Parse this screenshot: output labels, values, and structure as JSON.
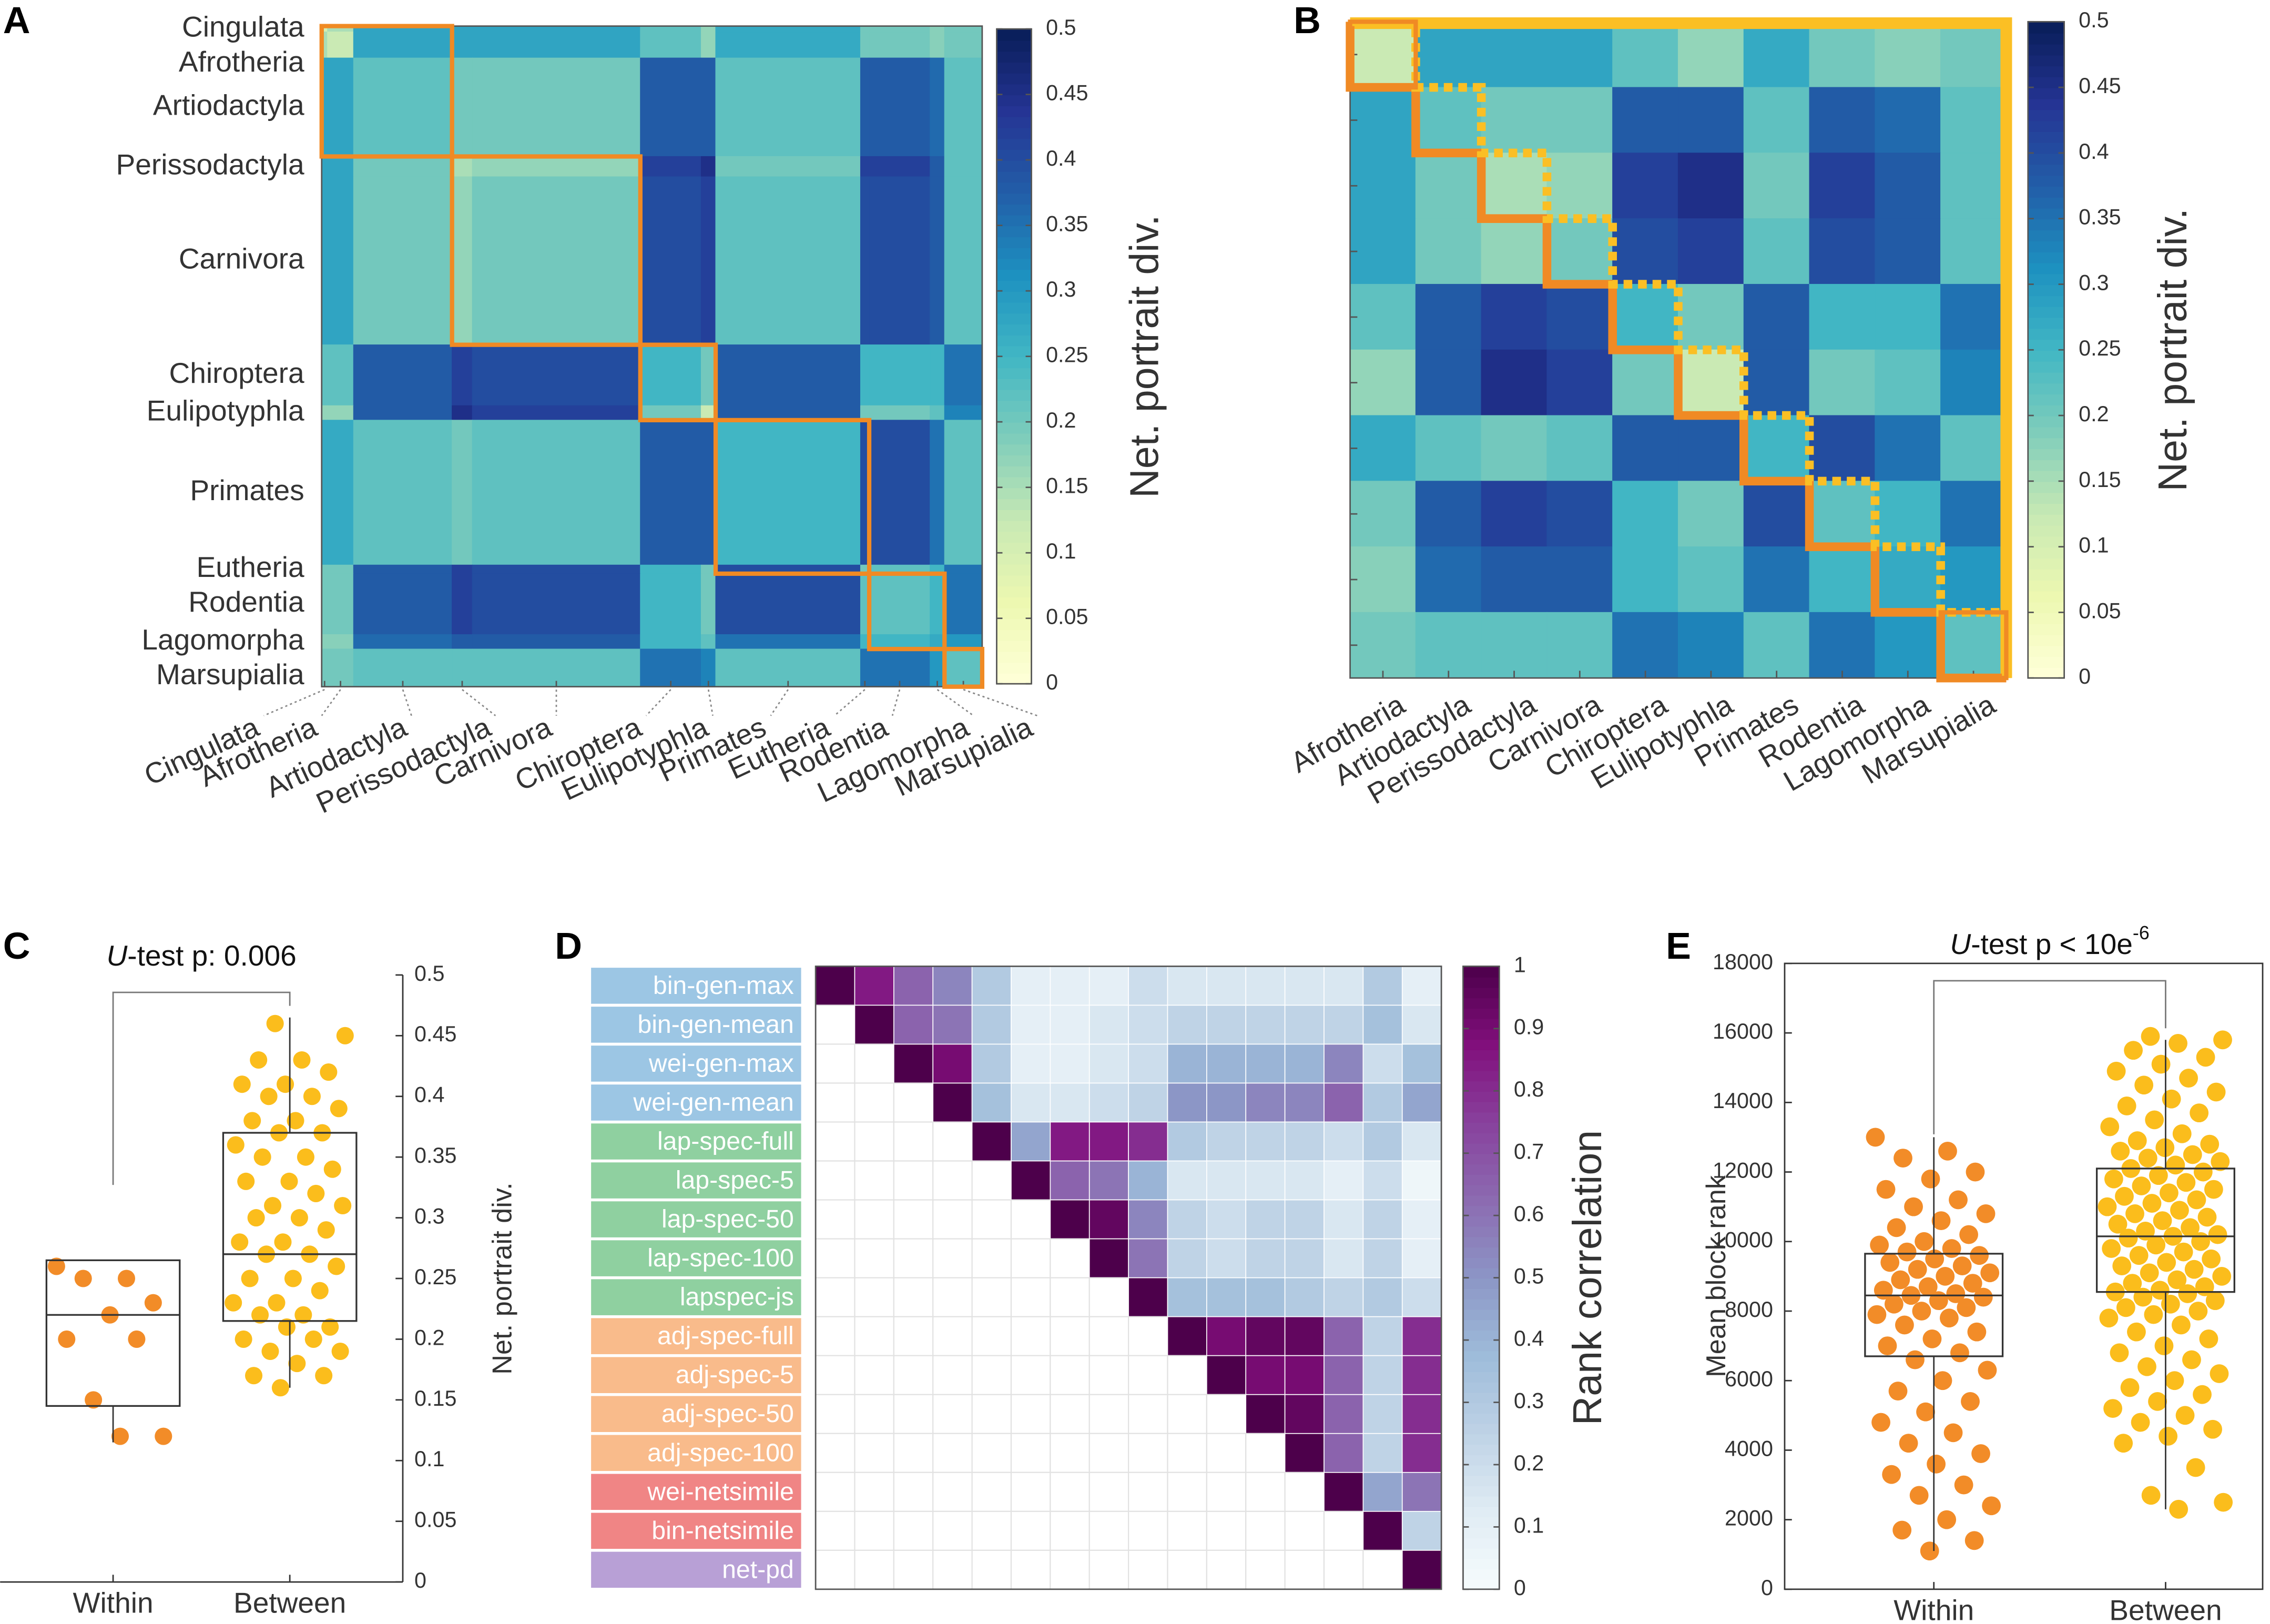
{
  "chart_data": [
    {
      "type": "heatmap",
      "panel": "A",
      "categories": [
        "Cingulata",
        "Afrotheria",
        "Artiodactyla",
        "Perissodactyla",
        "Carnivora",
        "Chiroptera",
        "Eulipotyphla",
        "Primates",
        "Eutheria",
        "Rodentia",
        "Lagomorpha",
        "Marsupialia"
      ],
      "sizes": [
        2,
        9,
        34,
        7,
        58,
        21,
        5,
        50,
        3,
        21,
        5,
        13
      ],
      "values": [
        [
          0.1,
          0.15,
          0.28,
          0.28,
          0.28,
          0.22,
          0.17,
          0.27,
          0.2,
          0.2,
          0.18,
          0.2
        ],
        [
          0.15,
          0.12,
          0.28,
          0.28,
          0.28,
          0.22,
          0.17,
          0.27,
          0.2,
          0.2,
          0.18,
          0.2
        ],
        [
          0.28,
          0.28,
          0.22,
          0.2,
          0.2,
          0.38,
          0.38,
          0.22,
          0.38,
          0.38,
          0.36,
          0.22
        ],
        [
          0.28,
          0.28,
          0.2,
          0.15,
          0.17,
          0.42,
          0.45,
          0.2,
          0.42,
          0.42,
          0.38,
          0.22
        ],
        [
          0.28,
          0.28,
          0.2,
          0.17,
          0.2,
          0.4,
          0.42,
          0.22,
          0.4,
          0.4,
          0.38,
          0.22
        ],
        [
          0.22,
          0.22,
          0.38,
          0.42,
          0.4,
          0.25,
          0.2,
          0.38,
          0.25,
          0.25,
          0.25,
          0.35
        ],
        [
          0.17,
          0.17,
          0.38,
          0.45,
          0.42,
          0.2,
          0.12,
          0.38,
          0.2,
          0.2,
          0.22,
          0.33
        ],
        [
          0.27,
          0.27,
          0.22,
          0.2,
          0.22,
          0.38,
          0.38,
          0.25,
          0.4,
          0.4,
          0.35,
          0.22
        ],
        [
          0.2,
          0.2,
          0.38,
          0.42,
          0.4,
          0.25,
          0.2,
          0.4,
          0.2,
          0.22,
          0.25,
          0.35
        ],
        [
          0.2,
          0.2,
          0.38,
          0.42,
          0.4,
          0.25,
          0.2,
          0.4,
          0.22,
          0.22,
          0.25,
          0.35
        ],
        [
          0.18,
          0.18,
          0.36,
          0.38,
          0.38,
          0.25,
          0.22,
          0.35,
          0.25,
          0.25,
          0.27,
          0.3
        ],
        [
          0.2,
          0.2,
          0.22,
          0.22,
          0.22,
          0.35,
          0.33,
          0.22,
          0.35,
          0.35,
          0.3,
          0.22
        ]
      ],
      "zlim": [
        0,
        0.5
      ],
      "zticks": [
        0,
        0.05,
        0.1,
        0.15,
        0.2,
        0.25,
        0.3,
        0.35,
        0.4,
        0.45,
        0.5
      ],
      "colorbar_label": "Net. portrait div.",
      "colormap": "YlGnBu",
      "highlight_groups": [
        [
          0,
          2
        ],
        [
          3,
          4
        ],
        [
          5,
          6
        ],
        [
          7,
          8
        ],
        [
          9,
          10
        ],
        [
          11,
          11
        ]
      ],
      "highlight_color": "#f08a24"
    },
    {
      "type": "heatmap",
      "panel": "B",
      "categories": [
        "Afrotheria",
        "Artiodactyla",
        "Perissodactyla",
        "Carnivora",
        "Chiroptera",
        "Eulipotyphla",
        "Primates",
        "Rodentia",
        "Lagomorpha",
        "Marsupialia"
      ],
      "values": [
        [
          0.12,
          0.28,
          0.28,
          0.28,
          0.22,
          0.17,
          0.27,
          0.2,
          0.18,
          0.2
        ],
        [
          0.28,
          0.22,
          0.2,
          0.2,
          0.38,
          0.38,
          0.22,
          0.38,
          0.36,
          0.22
        ],
        [
          0.28,
          0.2,
          0.15,
          0.17,
          0.42,
          0.45,
          0.2,
          0.42,
          0.38,
          0.22
        ],
        [
          0.28,
          0.2,
          0.17,
          0.2,
          0.4,
          0.42,
          0.22,
          0.4,
          0.38,
          0.22
        ],
        [
          0.22,
          0.38,
          0.42,
          0.4,
          0.25,
          0.2,
          0.38,
          0.25,
          0.25,
          0.35
        ],
        [
          0.17,
          0.38,
          0.45,
          0.42,
          0.2,
          0.12,
          0.38,
          0.2,
          0.22,
          0.33
        ],
        [
          0.27,
          0.22,
          0.2,
          0.22,
          0.38,
          0.38,
          0.25,
          0.4,
          0.35,
          0.22
        ],
        [
          0.2,
          0.38,
          0.42,
          0.4,
          0.25,
          0.2,
          0.4,
          0.22,
          0.25,
          0.35
        ],
        [
          0.18,
          0.36,
          0.38,
          0.38,
          0.25,
          0.22,
          0.35,
          0.25,
          0.27,
          0.3
        ],
        [
          0.2,
          0.22,
          0.22,
          0.22,
          0.35,
          0.33,
          0.22,
          0.35,
          0.3,
          0.22
        ]
      ],
      "zlim": [
        0,
        0.5
      ],
      "zticks": [
        0,
        0.05,
        0.1,
        0.15,
        0.2,
        0.25,
        0.3,
        0.35,
        0.4,
        0.45,
        0.5
      ],
      "colorbar_label": "Net. portrait div.",
      "colormap": "YlGnBu",
      "highlight_color": "#f08a24",
      "outline_color": "#fbbf24"
    },
    {
      "type": "box",
      "panel": "C",
      "categories": [
        "Within",
        "Between"
      ],
      "boxes": [
        {
          "color": "#f28c28",
          "q1": 0.145,
          "median": 0.22,
          "q3": 0.265,
          "whisker_low": 0.115,
          "whisker_high": 0.265,
          "points": [
            0.26,
            0.25,
            0.25,
            0.23,
            0.22,
            0.2,
            0.2,
            0.15,
            0.12,
            0.12
          ]
        },
        {
          "color": "#fbbd1c",
          "q1": 0.215,
          "median": 0.27,
          "q3": 0.37,
          "whisker_low": 0.16,
          "whisker_high": 0.465,
          "points": [
            0.46,
            0.45,
            0.43,
            0.43,
            0.42,
            0.41,
            0.41,
            0.4,
            0.4,
            0.39,
            0.38,
            0.38,
            0.37,
            0.37,
            0.36,
            0.35,
            0.35,
            0.34,
            0.33,
            0.33,
            0.32,
            0.31,
            0.31,
            0.3,
            0.3,
            0.29,
            0.28,
            0.28,
            0.27,
            0.27,
            0.26,
            0.25,
            0.25,
            0.24,
            0.23,
            0.23,
            0.22,
            0.22,
            0.21,
            0.21,
            0.2,
            0.2,
            0.19,
            0.19,
            0.18,
            0.17,
            0.17,
            0.16
          ]
        }
      ],
      "ylim": [
        0,
        0.5
      ],
      "yticks": [
        0,
        0.05,
        0.1,
        0.15,
        0.2,
        0.25,
        0.3,
        0.35,
        0.4,
        0.45,
        0.5
      ],
      "ylabel": "Net. portrait div.",
      "annotation": {
        "italic": "U",
        "text": "-test p: 0.006"
      }
    },
    {
      "type": "heatmap",
      "panel": "D",
      "categories": [
        "bin-gen-max",
        "bin-gen-mean",
        "wei-gen-max",
        "wei-gen-mean",
        "lap-spec-full",
        "lap-spec-5",
        "lap-spec-50",
        "lap-spec-100",
        "lapspec-js",
        "adj-spec-full",
        "adj-spec-5",
        "adj-spec-50",
        "adj-spec-100",
        "wei-netsimile",
        "bin-netsimile",
        "net-pd"
      ],
      "label_colors": [
        "#9cc6e4",
        "#9cc6e4",
        "#9cc6e4",
        "#9cc6e4",
        "#8fd0a0",
        "#8fd0a0",
        "#8fd0a0",
        "#8fd0a0",
        "#8fd0a0",
        "#f9bb8b",
        "#f9bb8b",
        "#f9bb8b",
        "#f9bb8b",
        "#f08585",
        "#f08585",
        "#b8a0d6"
      ],
      "values": [
        [
          1,
          0.85,
          0.65,
          0.55,
          0.3,
          0.1,
          0.1,
          0.1,
          0.2,
          0.15,
          0.15,
          0.15,
          0.15,
          0.15,
          0.3,
          0.1
        ],
        [
          null,
          1,
          0.65,
          0.6,
          0.3,
          0.1,
          0.1,
          0.15,
          0.2,
          0.25,
          0.25,
          0.25,
          0.25,
          0.25,
          0.35,
          0.15
        ],
        [
          null,
          null,
          1,
          0.9,
          0.3,
          0.1,
          0.1,
          0.15,
          0.2,
          0.4,
          0.4,
          0.4,
          0.4,
          0.55,
          0.2,
          0.35
        ],
        [
          null,
          null,
          null,
          1,
          0.35,
          0.15,
          0.15,
          0.2,
          0.25,
          0.5,
          0.5,
          0.55,
          0.55,
          0.65,
          0.3,
          0.45
        ],
        [
          null,
          null,
          null,
          null,
          1,
          0.45,
          0.85,
          0.85,
          0.8,
          0.3,
          0.25,
          0.25,
          0.25,
          0.2,
          0.3,
          0.15
        ],
        [
          null,
          null,
          null,
          null,
          null,
          1,
          0.65,
          0.6,
          0.4,
          0.15,
          0.15,
          0.15,
          0.15,
          0.1,
          0.2,
          0.05
        ],
        [
          null,
          null,
          null,
          null,
          null,
          null,
          1,
          0.95,
          0.55,
          0.25,
          0.2,
          0.25,
          0.25,
          0.15,
          0.25,
          0.1
        ],
        [
          null,
          null,
          null,
          null,
          null,
          null,
          null,
          1,
          0.6,
          0.25,
          0.2,
          0.25,
          0.25,
          0.15,
          0.25,
          0.1
        ],
        [
          null,
          null,
          null,
          null,
          null,
          null,
          null,
          null,
          1,
          0.35,
          0.35,
          0.35,
          0.3,
          0.25,
          0.3,
          0.2
        ],
        [
          null,
          null,
          null,
          null,
          null,
          null,
          null,
          null,
          null,
          1,
          0.9,
          0.95,
          0.95,
          0.65,
          0.25,
          0.8
        ],
        [
          null,
          null,
          null,
          null,
          null,
          null,
          null,
          null,
          null,
          null,
          1,
          0.9,
          0.9,
          0.65,
          0.25,
          0.8
        ],
        [
          null,
          null,
          null,
          null,
          null,
          null,
          null,
          null,
          null,
          null,
          null,
          1,
          0.95,
          0.65,
          0.25,
          0.8
        ],
        [
          null,
          null,
          null,
          null,
          null,
          null,
          null,
          null,
          null,
          null,
          null,
          null,
          1,
          0.65,
          0.25,
          0.8
        ],
        [
          null,
          null,
          null,
          null,
          null,
          null,
          null,
          null,
          null,
          null,
          null,
          null,
          null,
          1,
          0.45,
          0.6
        ],
        [
          null,
          null,
          null,
          null,
          null,
          null,
          null,
          null,
          null,
          null,
          null,
          null,
          null,
          null,
          1,
          0.25
        ],
        [
          null,
          null,
          null,
          null,
          null,
          null,
          null,
          null,
          null,
          null,
          null,
          null,
          null,
          null,
          null,
          1
        ]
      ],
      "zlim": [
        0,
        1
      ],
      "zticks": [
        0,
        0.1,
        0.2,
        0.3,
        0.4,
        0.5,
        0.6,
        0.7,
        0.8,
        0.9,
        1
      ],
      "colorbar_label": "Rank correlation",
      "colormap": "BuPu"
    },
    {
      "type": "box",
      "panel": "E",
      "categories": [
        "Within",
        "Between"
      ],
      "boxes": [
        {
          "color": "#f28c28",
          "q1": 6700,
          "median": 8450,
          "q3": 9650,
          "whisker_low": 1100,
          "whisker_high": 13000,
          "points": [
            13000,
            12600,
            12400,
            12000,
            11800,
            11500,
            11200,
            11000,
            10800,
            10600,
            10400,
            10200,
            10000,
            9900,
            9800,
            9700,
            9600,
            9500,
            9400,
            9300,
            9200,
            9100,
            9000,
            8900,
            8800,
            8700,
            8600,
            8500,
            8450,
            8400,
            8300,
            8200,
            8100,
            8000,
            7900,
            7800,
            7600,
            7400,
            7200,
            7000,
            6800,
            6600,
            6300,
            6000,
            5700,
            5400,
            5100,
            4800,
            4500,
            4200,
            3900,
            3600,
            3300,
            3000,
            2700,
            2400,
            2000,
            1700,
            1400,
            1100
          ]
        },
        {
          "color": "#fbbd1c",
          "q1": 8550,
          "median": 10150,
          "q3": 12100,
          "whisker_low": 2300,
          "whisker_high": 15800,
          "points": [
            15900,
            15800,
            15700,
            15500,
            15300,
            15100,
            14900,
            14700,
            14500,
            14300,
            14100,
            13900,
            13700,
            13500,
            13300,
            13100,
            12900,
            12800,
            12700,
            12600,
            12500,
            12400,
            12300,
            12200,
            12100,
            12000,
            11900,
            11800,
            11700,
            11600,
            11500,
            11400,
            11300,
            11200,
            11100,
            11000,
            10900,
            10800,
            10700,
            10600,
            10500,
            10400,
            10300,
            10200,
            10150,
            10100,
            10000,
            9900,
            9800,
            9700,
            9600,
            9500,
            9400,
            9300,
            9200,
            9100,
            9000,
            8900,
            8800,
            8700,
            8600,
            8550,
            8500,
            8400,
            8300,
            8200,
            8100,
            8000,
            7900,
            7800,
            7600,
            7400,
            7200,
            7000,
            6800,
            6600,
            6400,
            6200,
            6000,
            5800,
            5600,
            5400,
            5200,
            5000,
            4800,
            4600,
            4400,
            4200,
            3500,
            2700,
            2500,
            2300
          ]
        }
      ],
      "ylim": [
        0,
        18000
      ],
      "yticks": [
        0,
        2000,
        4000,
        6000,
        8000,
        10000,
        12000,
        14000,
        16000,
        18000
      ],
      "ylabel": "Mean block rank",
      "annotation": {
        "italic": "U",
        "text": "-test p < 10e",
        "superscript": "-6"
      }
    }
  ]
}
